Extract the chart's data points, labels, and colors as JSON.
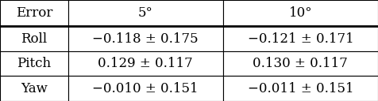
{
  "col_headers": [
    "Error",
    "5°",
    "10°"
  ],
  "row_labels": [
    "Roll",
    "Pitch",
    "Yaw"
  ],
  "cell_data": [
    [
      "−0.118 ± 0.175",
      "−0.121 ± 0.171"
    ],
    [
      "0.129 ± 0.117",
      "0.130 ± 0.117"
    ],
    [
      "−0.010 ± 0.151",
      "−0.011 ± 0.151"
    ]
  ],
  "font_size": 12.0,
  "background_color": "#ffffff",
  "text_color": "#000000",
  "line_color": "#000000",
  "figsize": [
    4.76,
    1.28
  ],
  "dpi": 100
}
